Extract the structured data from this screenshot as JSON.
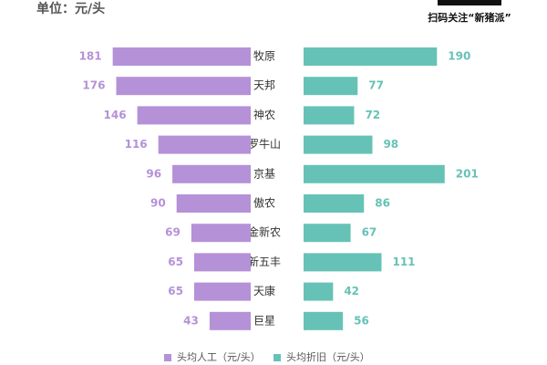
{
  "chart_data": {
    "type": "butterfly",
    "subtitle": "单位：元/头",
    "qr_caption": "扫码关注“新猪派”",
    "categories": [
      "牧原",
      "天邦",
      "神农",
      "罗牛山",
      "京基",
      "傲农",
      "金新农",
      "新五丰",
      "天康",
      "巨星"
    ],
    "series": [
      {
        "name": "头均人工（元/头）",
        "color": "#b591d8",
        "values": [
          181,
          176,
          146,
          116,
          96,
          90,
          69,
          65,
          65,
          43
        ]
      },
      {
        "name": "头均折旧（元/头）",
        "color": "#66c2b6",
        "values": [
          190,
          77,
          72,
          98,
          201,
          86,
          67,
          111,
          42,
          56
        ]
      }
    ]
  }
}
